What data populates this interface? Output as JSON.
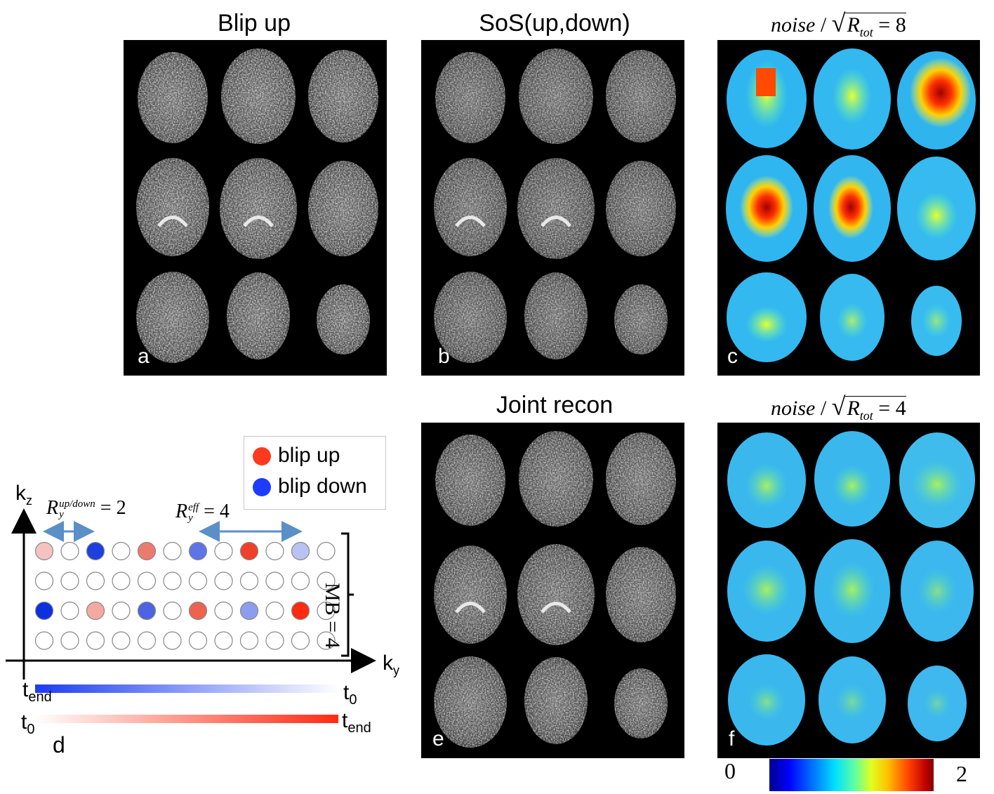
{
  "titles": {
    "blip_up": "Blip up",
    "sos": "SoS(up,down)",
    "joint": "Joint recon"
  },
  "formulas": {
    "c": {
      "noise": "noise",
      "slash": " / ",
      "R": "R",
      "sub": "tot",
      "rhs": " = 8"
    },
    "f": {
      "noise": "noise",
      "slash": " / ",
      "R": "R",
      "sub": "tot",
      "rhs": " = 4"
    }
  },
  "panel_letters": {
    "a": "a",
    "b": "b",
    "c": "c",
    "d": "d",
    "e": "e",
    "f": "f"
  },
  "legend": {
    "up_label": "blip up",
    "down_label": "blip down",
    "up_color": "#ff3a1e",
    "down_color": "#1d3cff"
  },
  "diagram": {
    "kz": "k",
    "kz_sub": "z",
    "ky": "k",
    "ky_sub": "y",
    "ry_updown_base": "R",
    "ry_updown_sub": "y",
    "ry_updown_sup": "up/down",
    "ry_updown_rhs": "= 2",
    "ry_eff_base": "R",
    "ry_eff_sub": "y",
    "ry_eff_sup": "eff",
    "ry_eff_rhs": "= 4",
    "mb": "MB = 4",
    "t_end_top": "t",
    "t_end_top_sub": "end",
    "t0_top": "t",
    "t0_top_sub": "0",
    "t0_bottom": "t",
    "t0_bottom_sub": "0",
    "t_end_bottom": "t",
    "t_end_bottom_sub": "end",
    "rows": [
      [
        "#f4c3c0",
        "#ffffff",
        "#1d3fe0",
        "#ffffff",
        "#ec7b6f",
        "#ffffff",
        "#5f74e6",
        "#ffffff",
        "#f0402a",
        "#ffffff",
        "#b9c2f2",
        "#ffffff"
      ],
      [
        "#ffffff",
        "#ffffff",
        "#ffffff",
        "#ffffff",
        "#ffffff",
        "#ffffff",
        "#ffffff",
        "#ffffff",
        "#ffffff",
        "#ffffff",
        "#ffffff",
        "#ffffff"
      ],
      [
        "#0c2fe0",
        "#ffffff",
        "#f2aaa0",
        "#ffffff",
        "#4d63e4",
        "#ffffff",
        "#ee6250",
        "#ffffff",
        "#8c9cee",
        "#ffffff",
        "#ff2a12",
        "#ffffff"
      ],
      [
        "#ffffff",
        "#ffffff",
        "#ffffff",
        "#ffffff",
        "#ffffff",
        "#ffffff",
        "#ffffff",
        "#ffffff",
        "#ffffff",
        "#ffffff",
        "#ffffff",
        "#ffffff"
      ]
    ]
  },
  "colorbar": {
    "min_label": "0",
    "max_label": "2"
  }
}
